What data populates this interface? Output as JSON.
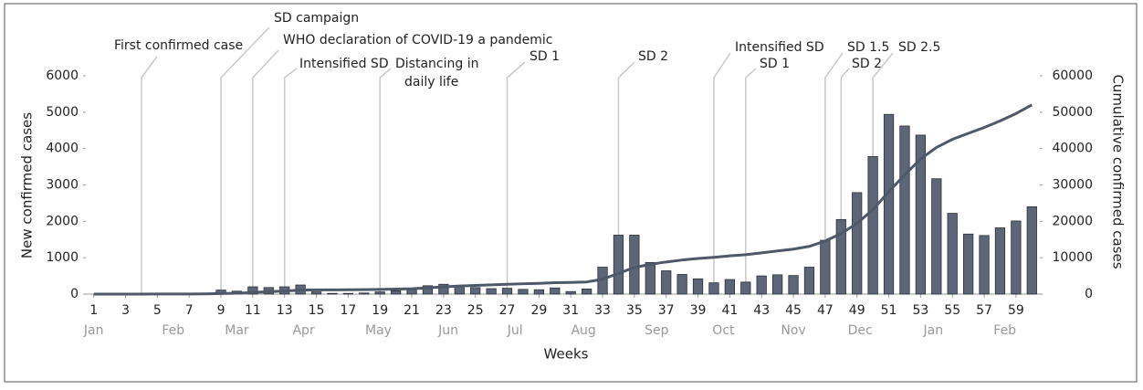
{
  "chart_data": {
    "type": "bar_line",
    "x_label": "Weeks",
    "y_label": "New confirmed cases",
    "y2_label": "Cumulative confirmed cases",
    "x": [
      1,
      2,
      3,
      4,
      5,
      6,
      7,
      8,
      9,
      10,
      11,
      12,
      13,
      14,
      15,
      16,
      17,
      18,
      19,
      20,
      21,
      22,
      23,
      24,
      25,
      26,
      27,
      28,
      29,
      30,
      31,
      32,
      33,
      34,
      35,
      36,
      37,
      38,
      39,
      40,
      41,
      42,
      43,
      44,
      45,
      46,
      47,
      48,
      49,
      50,
      51,
      52,
      53,
      54,
      55,
      56,
      57,
      58,
      59,
      60
    ],
    "xlim": [
      0.5,
      60.5
    ],
    "xticks": [
      1,
      3,
      5,
      7,
      9,
      11,
      13,
      15,
      17,
      19,
      21,
      23,
      25,
      27,
      29,
      31,
      33,
      35,
      37,
      39,
      41,
      43,
      45,
      47,
      49,
      51,
      53,
      55,
      57,
      59
    ],
    "month_labels": [
      {
        "label": "Jan",
        "week": 1
      },
      {
        "label": "Feb",
        "week": 6
      },
      {
        "label": "Mar",
        "week": 10
      },
      {
        "label": "Apr",
        "week": 14.2
      },
      {
        "label": "May",
        "week": 18.9
      },
      {
        "label": "Jun",
        "week": 23.3
      },
      {
        "label": "Jul",
        "week": 27.5
      },
      {
        "label": "Aug",
        "week": 31.8
      },
      {
        "label": "Sep",
        "week": 36.4
      },
      {
        "label": "Oct",
        "week": 40.6
      },
      {
        "label": "Nov",
        "week": 45
      },
      {
        "label": "Dec",
        "week": 49.2
      },
      {
        "label": "Jan",
        "week": 53.8
      },
      {
        "label": "Feb",
        "week": 58.3
      }
    ],
    "ylim": [
      0,
      6000
    ],
    "yticks": [
      0,
      1000,
      2000,
      3000,
      4000,
      5000,
      6000
    ],
    "y2lim": [
      0,
      60000
    ],
    "y2ticks": [
      0,
      10000,
      20000,
      30000,
      40000,
      50000,
      60000
    ],
    "series": [
      {
        "name": "New confirmed cases",
        "kind": "bar",
        "color": "#5d6679",
        "values": [
          0,
          0,
          0,
          0,
          0,
          0,
          0,
          20,
          110,
          80,
          200,
          180,
          200,
          250,
          60,
          20,
          20,
          30,
          60,
          90,
          120,
          230,
          270,
          230,
          180,
          150,
          160,
          130,
          120,
          170,
          70,
          140,
          740,
          1620,
          1620,
          870,
          640,
          540,
          420,
          310,
          400,
          330,
          500,
          530,
          510,
          740,
          1480,
          2050,
          2790,
          3780,
          4940,
          4620,
          4370,
          3170,
          2220,
          1650,
          1610,
          1820,
          2010,
          2400
        ]
      },
      {
        "name": "Cumulative confirmed cases",
        "kind": "line",
        "axis": "y2",
        "color": "#4d5868",
        "values": [
          0,
          0,
          0,
          10,
          20,
          30,
          30,
          50,
          150,
          250,
          450,
          650,
          850,
          1100,
          1150,
          1170,
          1190,
          1220,
          1280,
          1370,
          1490,
          1720,
          1990,
          2220,
          2400,
          2550,
          2710,
          2840,
          2960,
          3130,
          3200,
          3340,
          4080,
          5700,
          7320,
          8190,
          8830,
          9370,
          9790,
          10100,
          10500,
          10830,
          11330,
          11860,
          12370,
          13110,
          14590,
          16640,
          19430,
          23210,
          28150,
          32770,
          37140,
          40310,
          42530,
          44180,
          45790,
          47610,
          49620,
          52020
        ]
      }
    ],
    "annotations": [
      {
        "lines": [
          "First confirmed case"
        ],
        "week": 4
      },
      {
        "lines": [
          "SD campaign"
        ],
        "week": 9
      },
      {
        "lines": [
          "WHO declaration of COVID-19 a pandemic"
        ],
        "week": 11
      },
      {
        "lines": [
          "Intensified SD"
        ],
        "week": 13
      },
      {
        "lines": [
          "Distancing in",
          "daily life"
        ],
        "week": 19
      },
      {
        "lines": [
          "SD 1"
        ],
        "week": 27
      },
      {
        "lines": [
          "SD 2"
        ],
        "week": 34
      },
      {
        "lines": [
          "Intensified SD"
        ],
        "week": 40
      },
      {
        "lines": [
          "SD 1"
        ],
        "week": 42
      },
      {
        "lines": [
          "SD 1.5"
        ],
        "week": 47
      },
      {
        "lines": [
          "SD 2"
        ],
        "week": 48
      },
      {
        "lines": [
          "SD 2.5"
        ],
        "week": 50
      }
    ]
  }
}
